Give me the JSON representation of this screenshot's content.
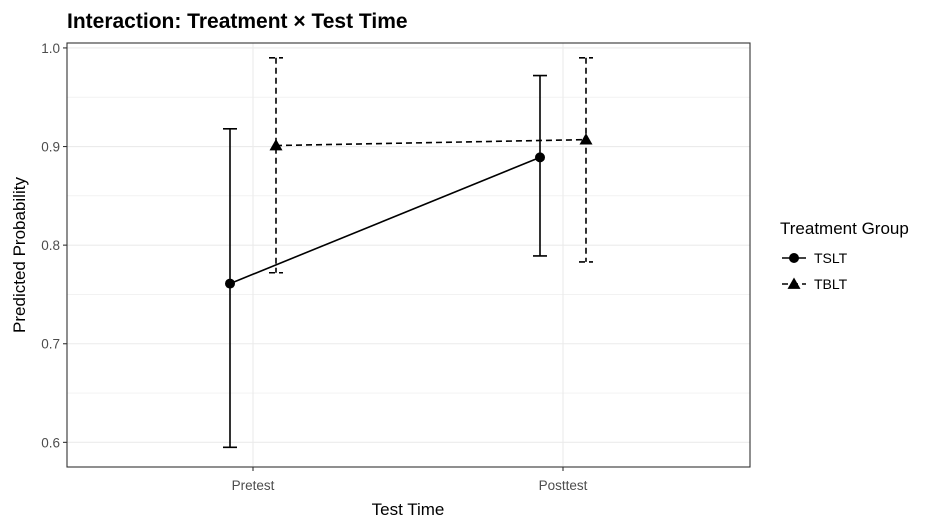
{
  "chart_data": {
    "type": "line",
    "title": "Interaction: Treatment × Test Time",
    "xlabel": "Test Time",
    "ylabel": "Predicted Probability",
    "categories": [
      "Pretest",
      "Posttest"
    ],
    "ylim": [
      0.575,
      1.005
    ],
    "yticks": [
      0.6,
      0.7,
      0.8,
      0.9,
      1.0
    ],
    "ytick_labels": [
      "0.6",
      "0.7",
      "0.8",
      "0.9",
      "1.0"
    ],
    "grid": true,
    "legend": {
      "title": "Treatment Group",
      "position": "right"
    },
    "series": [
      {
        "name": "TSLT",
        "marker": "circle",
        "line": "solid",
        "values": [
          0.761,
          0.889
        ],
        "lower": [
          0.595,
          0.789
        ],
        "upper": [
          0.918,
          0.972
        ]
      },
      {
        "name": "TBLT",
        "marker": "triangle",
        "line": "dashed",
        "values": [
          0.901,
          0.907
        ],
        "lower": [
          0.772,
          0.783
        ],
        "upper": [
          0.99,
          0.99
        ]
      }
    ],
    "colors": {
      "line": "#000000",
      "grid": "#ebebeb",
      "panel_border": "#333333",
      "tick_text": "#4d4d4d"
    }
  }
}
